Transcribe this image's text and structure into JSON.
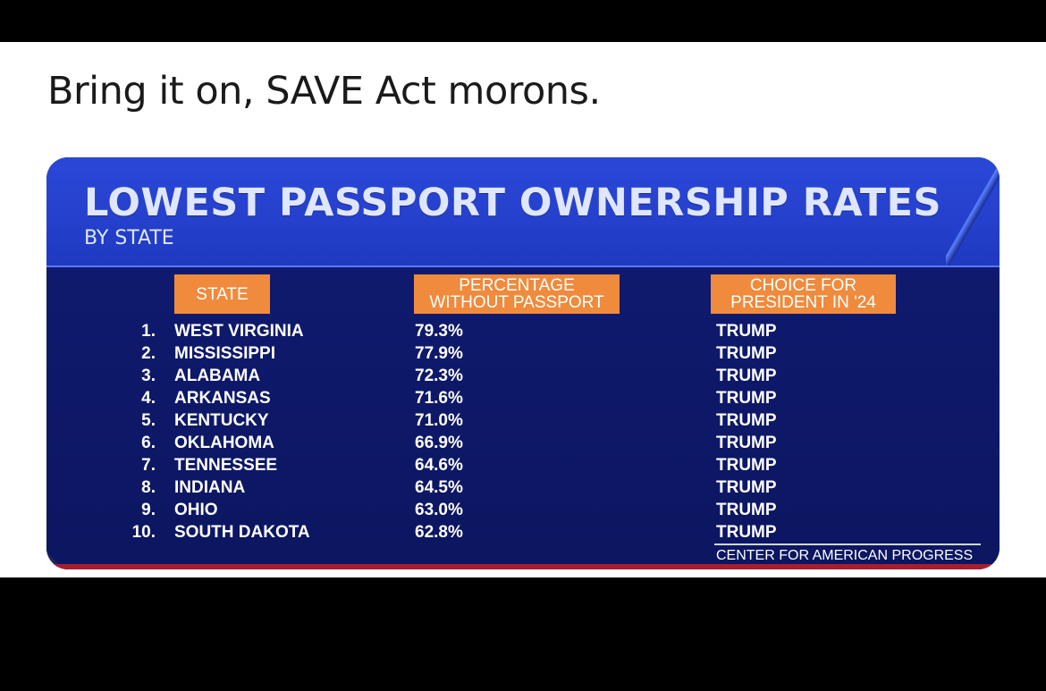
{
  "caption": "Bring it on, SAVE Act morons.",
  "graphic": {
    "title": "LOWEST PASSPORT OWNERSHIP RATES",
    "subtitle": "BY STATE",
    "headers": {
      "state": "STATE",
      "pct_line1": "PERCENTAGE",
      "pct_line2": "WITHOUT PASSPORT",
      "pres_line1": "CHOICE FOR",
      "pres_line2": "PRESIDENT IN '24"
    },
    "rows": [
      {
        "rank": "1.",
        "state": "WEST VIRGINIA",
        "pct": "79.3%",
        "pres": "TRUMP"
      },
      {
        "rank": "2.",
        "state": "MISSISSIPPI",
        "pct": "77.9%",
        "pres": "TRUMP"
      },
      {
        "rank": "3.",
        "state": "ALABAMA",
        "pct": "72.3%",
        "pres": "TRUMP"
      },
      {
        "rank": "4.",
        "state": "ARKANSAS",
        "pct": "71.6%",
        "pres": "TRUMP"
      },
      {
        "rank": "5.",
        "state": "KENTUCKY",
        "pct": "71.0%",
        "pres": "TRUMP"
      },
      {
        "rank": "6.",
        "state": "OKLAHOMA",
        "pct": "66.9%",
        "pres": "TRUMP"
      },
      {
        "rank": "7.",
        "state": "TENNESSEE",
        "pct": "64.6%",
        "pres": "TRUMP"
      },
      {
        "rank": "8.",
        "state": "INDIANA",
        "pct": "64.5%",
        "pres": "TRUMP"
      },
      {
        "rank": "9.",
        "state": "OHIO",
        "pct": "63.0%",
        "pres": "TRUMP"
      },
      {
        "rank": "10.",
        "state": "SOUTH DAKOTA",
        "pct": "62.8%",
        "pres": "TRUMP"
      }
    ],
    "source": "CENTER FOR AMERICAN PROGRESS"
  }
}
